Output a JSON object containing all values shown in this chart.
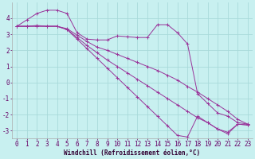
{
  "background_color": "#c8f0f0",
  "grid_color": "#a8dada",
  "line_color": "#993399",
  "marker_color": "#993399",
  "xlabel": "Windchill (Refroidissement éolien,°C)",
  "xlabel_fontsize": 5.5,
  "tick_fontsize": 5.5,
  "xlim": [
    -0.5,
    23.5
  ],
  "ylim": [
    -3.5,
    5.0
  ],
  "yticks": [
    -3,
    -2,
    -1,
    0,
    1,
    2,
    3,
    4
  ],
  "xticks": [
    0,
    1,
    2,
    3,
    4,
    5,
    6,
    7,
    8,
    9,
    10,
    11,
    12,
    13,
    14,
    15,
    16,
    17,
    18,
    19,
    20,
    21,
    22,
    23
  ],
  "series": [
    {
      "x": [
        0,
        1,
        2,
        3,
        4,
        5,
        6,
        7,
        8,
        9,
        10,
        11,
        12,
        13,
        14,
        15,
        16,
        17,
        18,
        19,
        20,
        21,
        22,
        23
      ],
      "y": [
        3.5,
        3.9,
        4.3,
        4.5,
        4.5,
        4.3,
        3.1,
        2.7,
        2.65,
        2.65,
        2.9,
        2.85,
        2.8,
        2.8,
        3.6,
        3.6,
        3.1,
        2.4,
        -0.7,
        -1.3,
        -1.9,
        -2.1,
        -2.5,
        -2.6
      ]
    },
    {
      "x": [
        0,
        1,
        2,
        3,
        4,
        5,
        6,
        7,
        8,
        9,
        10,
        11,
        12,
        13,
        14,
        15,
        16,
        17,
        18,
        19,
        20,
        21,
        22,
        23
      ],
      "y": [
        3.5,
        3.5,
        3.55,
        3.5,
        3.5,
        3.35,
        2.95,
        2.55,
        2.2,
        2.0,
        1.75,
        1.5,
        1.25,
        1.0,
        0.75,
        0.45,
        0.15,
        -0.25,
        -0.6,
        -1.0,
        -1.4,
        -1.8,
        -2.3,
        -2.6
      ]
    },
    {
      "x": [
        0,
        1,
        2,
        3,
        4,
        5,
        6,
        7,
        8,
        9,
        10,
        11,
        12,
        13,
        14,
        15,
        16,
        17,
        18,
        19,
        20,
        21,
        22,
        23
      ],
      "y": [
        3.5,
        3.5,
        3.5,
        3.5,
        3.5,
        3.3,
        2.8,
        2.3,
        1.85,
        1.4,
        1.0,
        0.6,
        0.2,
        -0.2,
        -0.6,
        -1.0,
        -1.4,
        -1.8,
        -2.2,
        -2.5,
        -2.9,
        -3.1,
        -2.6,
        -2.65
      ]
    },
    {
      "x": [
        0,
        1,
        2,
        3,
        4,
        5,
        6,
        7,
        8,
        9,
        10,
        11,
        12,
        13,
        14,
        15,
        16,
        17,
        18,
        19,
        20,
        21,
        22,
        23
      ],
      "y": [
        3.5,
        3.5,
        3.5,
        3.5,
        3.5,
        3.3,
        2.7,
        2.1,
        1.5,
        0.9,
        0.3,
        -0.3,
        -0.9,
        -1.5,
        -2.1,
        -2.7,
        -3.3,
        -3.4,
        -2.1,
        -2.5,
        -2.9,
        -3.2,
        -2.6,
        -2.65
      ]
    }
  ]
}
